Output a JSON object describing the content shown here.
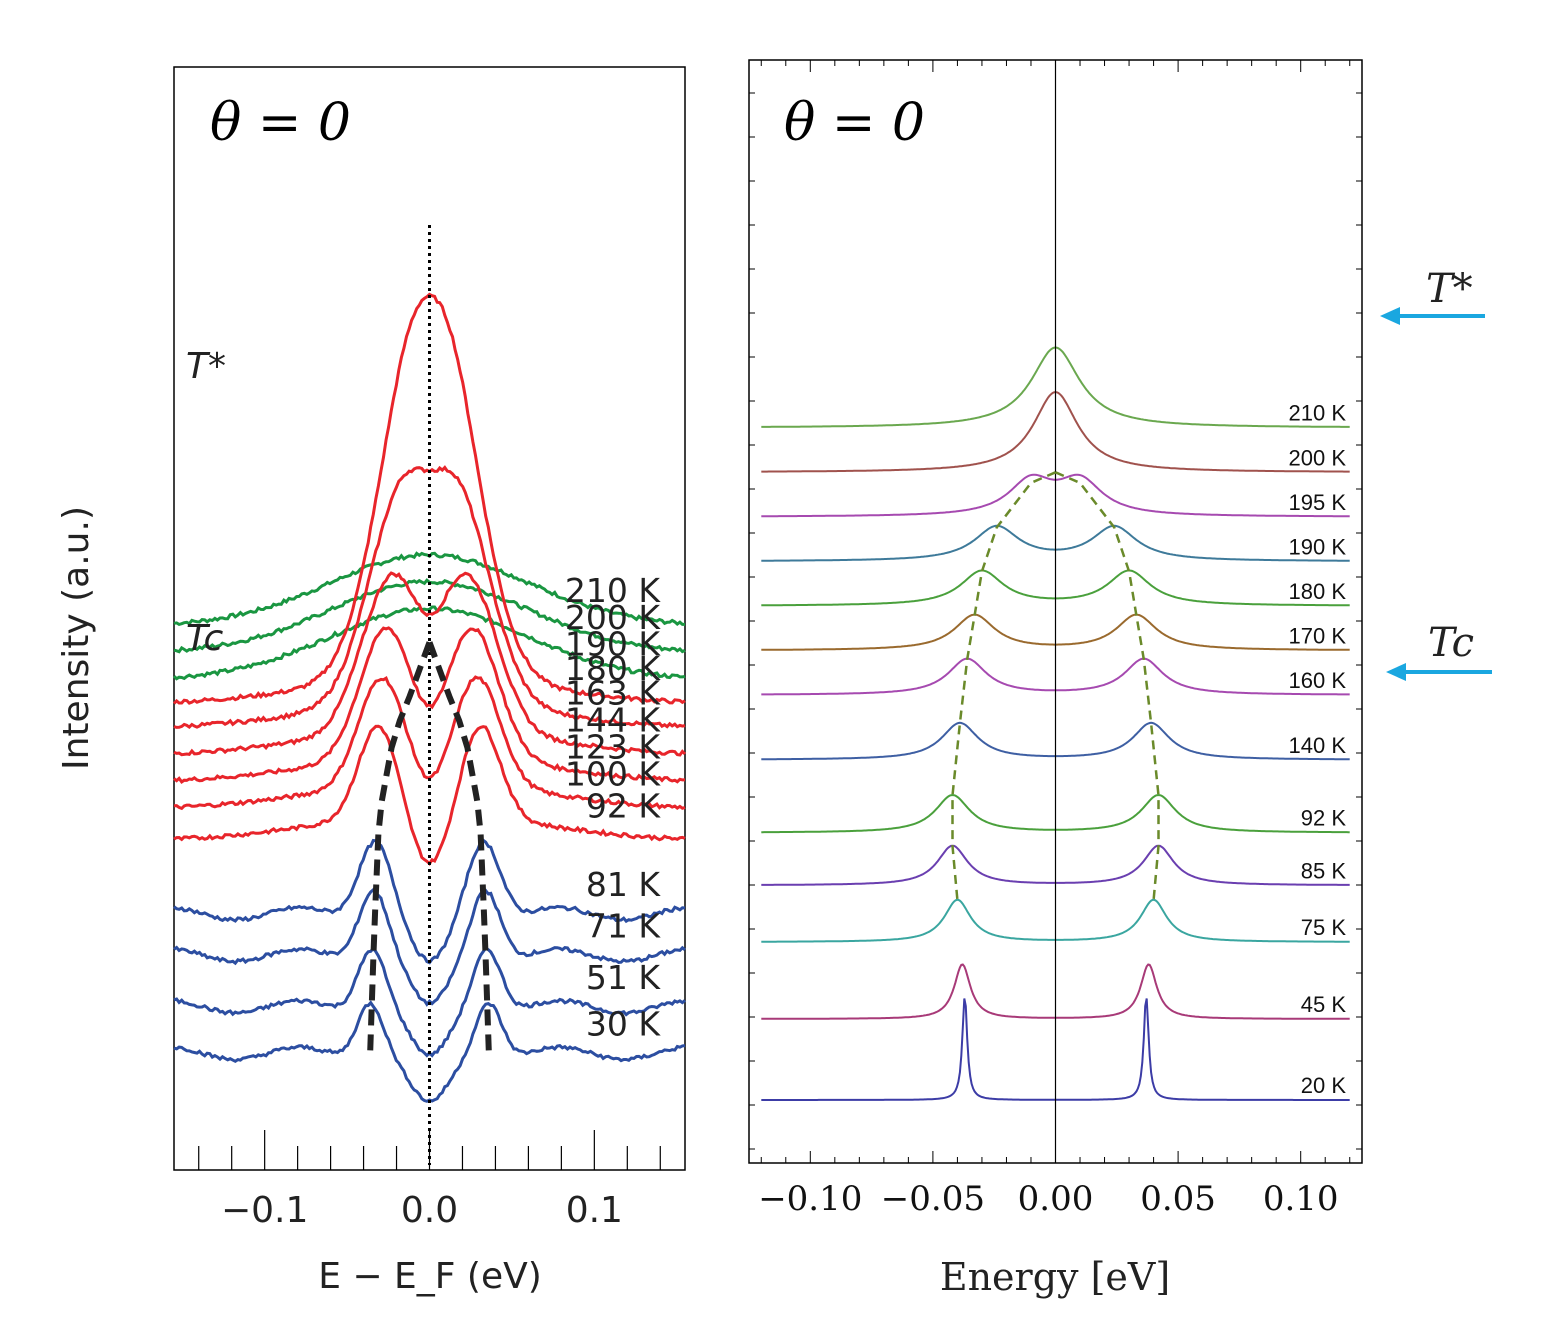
{
  "chart_data": [
    {
      "type": "line",
      "title": "θ = 0",
      "xlabel": "E − E_F (eV)",
      "ylabel": "Intensity (a.u.)",
      "xlim": [
        -0.155,
        0.155
      ],
      "xticks": [
        "−0.1",
        "0.0",
        "0.1"
      ],
      "x_tick_values": [
        -0.1,
        0.0,
        0.1
      ],
      "annotations": {
        "t_star": "T*",
        "t_c": "Tc"
      },
      "series": [
        {
          "name": "210 K",
          "color": "#1a9641",
          "peak": 0.0,
          "width": 0.0,
          "offset": 10.8
        },
        {
          "name": "200 K",
          "color": "#1a9641",
          "peak": 0.0,
          "width": 0.0,
          "offset": 10.25
        },
        {
          "name": "190 K",
          "color": "#1a9641",
          "peak": 0.0,
          "width": 0.0,
          "offset": 9.7
        },
        {
          "name": "180 K",
          "color": "#e8252b",
          "peak": 0.012,
          "width": 0.022,
          "offset": 9.2
        },
        {
          "name": "163 K",
          "color": "#e8252b",
          "peak": 0.018,
          "width": 0.02,
          "offset": 8.7
        },
        {
          "name": "144 K",
          "color": "#e8252b",
          "peak": 0.023,
          "width": 0.018,
          "offset": 8.15
        },
        {
          "name": "123 K",
          "color": "#e8252b",
          "peak": 0.026,
          "width": 0.016,
          "offset": 7.6
        },
        {
          "name": "100 K",
          "color": "#e8252b",
          "peak": 0.029,
          "width": 0.014,
          "offset": 7.05
        },
        {
          "name": "92 K",
          "color": "#e8252b",
          "peak": 0.031,
          "width": 0.012,
          "offset": 6.4
        },
        {
          "name": "81 K",
          "color": "#2c4ea1",
          "peak": 0.033,
          "width": 0.01,
          "offset": 4.8
        },
        {
          "name": "71 K",
          "color": "#2c4ea1",
          "peak": 0.034,
          "width": 0.009,
          "offset": 3.95
        },
        {
          "name": "51 K",
          "color": "#2c4ea1",
          "peak": 0.035,
          "width": 0.0085,
          "offset": 2.9
        },
        {
          "name": "30 K",
          "color": "#2c4ea1",
          "peak": 0.036,
          "width": 0.008,
          "offset": 1.95
        }
      ]
    },
    {
      "type": "line",
      "title": "θ = 0",
      "xlabel": "Energy [eV]",
      "ylabel": "",
      "xlim": [
        -0.12,
        0.12
      ],
      "xticks": [
        "−0.10",
        "−0.05",
        "0.00",
        "0.05",
        "0.10"
      ],
      "x_tick_values": [
        -0.1,
        -0.05,
        0.0,
        0.05,
        0.1
      ],
      "annotations": {
        "t_star": "T*",
        "t_c": "Tc"
      },
      "series": [
        {
          "name": "210 K",
          "color": "#6aa84f",
          "gap": 0.0,
          "gamma": 0.012,
          "offset": 8.3
        },
        {
          "name": "200 K",
          "color": "#a0524d",
          "gap": 0.0,
          "gamma": 0.011,
          "offset": 7.75
        },
        {
          "name": "195 K",
          "color": "#a64ab0",
          "gap": 0.01,
          "gamma": 0.011,
          "offset": 7.2
        },
        {
          "name": "190 K",
          "color": "#3e7a9a",
          "gap": 0.024,
          "gamma": 0.011,
          "offset": 6.65
        },
        {
          "name": "180 K",
          "color": "#4aa03c",
          "gap": 0.03,
          "gamma": 0.0105,
          "offset": 6.1
        },
        {
          "name": "170 K",
          "color": "#9a6a2e",
          "gap": 0.033,
          "gamma": 0.01,
          "offset": 5.55
        },
        {
          "name": "160 K",
          "color": "#a64ab0",
          "gap": 0.036,
          "gamma": 0.0095,
          "offset": 5.0
        },
        {
          "name": "140 K",
          "color": "#3e5fa3",
          "gap": 0.039,
          "gamma": 0.009,
          "offset": 4.2
        },
        {
          "name": "92 K",
          "color": "#4aa03c",
          "gap": 0.042,
          "gamma": 0.0085,
          "offset": 3.3
        },
        {
          "name": "85 K",
          "color": "#6a3fb0",
          "gap": 0.042,
          "gamma": 0.0075,
          "offset": 2.65
        },
        {
          "name": "75 K",
          "color": "#3aa6a0",
          "gap": 0.04,
          "gamma": 0.0065,
          "offset": 1.95
        },
        {
          "name": "45 K",
          "color": "#a83a78",
          "gap": 0.038,
          "gamma": 0.004,
          "offset": 1.0
        },
        {
          "name": "20 K",
          "color": "#3c3ca6",
          "gap": 0.037,
          "gamma": 0.0012,
          "offset": 0.0
        }
      ]
    }
  ]
}
